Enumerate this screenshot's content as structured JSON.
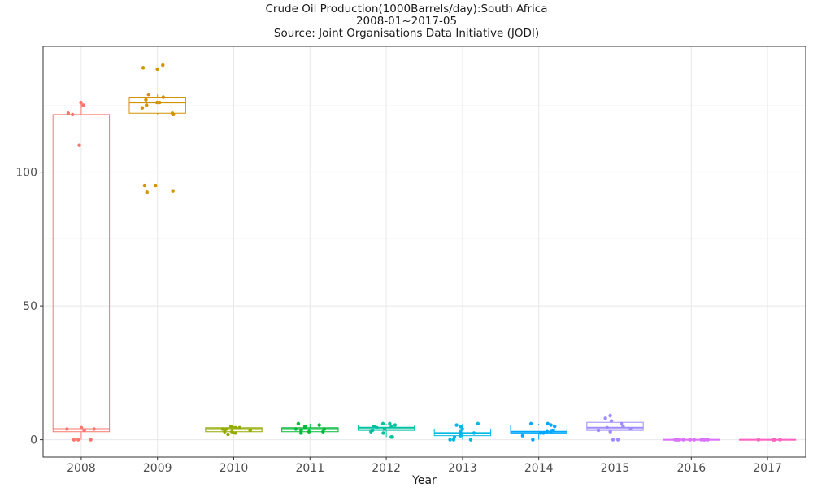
{
  "chart_data": {
    "type": "boxplot",
    "title": "Crude Oil Production(1000Barrels/day):South Africa",
    "subtitle": "2008-01~2017-05",
    "source": "Source: Joint Organisations Data Initiative (JODI)",
    "xlabel": "Year",
    "ylabel": "",
    "categories": [
      "2008",
      "2009",
      "2010",
      "2011",
      "2012",
      "2013",
      "2014",
      "2015",
      "2016",
      "2017"
    ],
    "ylim": [
      -6.5,
      147
    ],
    "yticks": [
      0,
      50,
      100
    ],
    "grid": true,
    "legend": "none",
    "colors": [
      "#F8766D",
      "#D39200",
      "#93AA00",
      "#00BA38",
      "#00C19F",
      "#00B9E3",
      "#00A9FF",
      "#9F8CFF",
      "#DB72FB",
      "#FF61C3"
    ],
    "boxes": [
      {
        "year": "2008",
        "q1": 3,
        "median": 4,
        "q3": 121.5,
        "whisker_low": 0,
        "whisker_high": 126,
        "points": [
          126,
          125,
          122,
          121.5,
          110,
          4.5,
          4,
          4,
          3.5,
          0,
          0,
          0
        ]
      },
      {
        "year": "2009",
        "q1": 122,
        "median": 126,
        "q3": 128,
        "whisker_low": 121.5,
        "whisker_high": 129,
        "points": [
          140,
          139,
          138.5,
          129,
          128,
          127,
          126,
          126,
          125,
          124,
          122,
          121.5,
          95,
          95,
          93,
          92.5
        ]
      },
      {
        "year": "2010",
        "q1": 3,
        "median": 4,
        "q3": 4.5,
        "whisker_low": 2,
        "whisker_high": 5,
        "points": [
          5,
          4.5,
          4.5,
          4,
          4,
          3.5,
          3,
          3,
          2.5,
          2
        ]
      },
      {
        "year": "2011",
        "q1": 3,
        "median": 4,
        "q3": 4.5,
        "whisker_low": 2.5,
        "whisker_high": 6,
        "points": [
          6,
          5.5,
          5,
          4.5,
          4,
          4,
          3.5,
          3,
          3,
          2.5
        ]
      },
      {
        "year": "2012",
        "q1": 3.5,
        "median": 4.5,
        "q3": 5.5,
        "whisker_low": 1,
        "whisker_high": 6,
        "points": [
          6,
          6,
          5.5,
          5,
          5,
          4.5,
          4,
          3.5,
          3,
          2.5,
          1,
          1
        ]
      },
      {
        "year": "2013",
        "q1": 1.5,
        "median": 2.5,
        "q3": 4,
        "whisker_low": 0,
        "whisker_high": 6,
        "points": [
          6,
          5.5,
          5,
          4,
          3,
          2.5,
          2,
          1.5,
          1,
          0,
          0,
          0
        ]
      },
      {
        "year": "2014",
        "q1": 2.5,
        "median": 3,
        "q3": 5.5,
        "whisker_low": 0,
        "whisker_high": 6,
        "points": [
          6,
          6,
          5.5,
          5,
          3.5,
          3,
          3,
          2.5,
          2.5,
          1.5,
          0
        ]
      },
      {
        "year": "2015",
        "q1": 3.5,
        "median": 4.5,
        "q3": 6.5,
        "whisker_low": 0,
        "whisker_high": 9,
        "points": [
          9,
          8,
          7,
          6,
          5,
          4.5,
          4,
          3.5,
          3,
          0,
          0
        ]
      },
      {
        "year": "2016",
        "q1": 0,
        "median": 0,
        "q3": 0,
        "whisker_low": 0,
        "whisker_high": 0,
        "points": [
          0,
          0,
          0,
          0,
          0,
          0,
          0,
          0,
          0,
          0,
          0,
          0
        ]
      },
      {
        "year": "2017",
        "q1": 0,
        "median": 0,
        "q3": 0,
        "whisker_low": 0,
        "whisker_high": 0,
        "points": [
          0,
          0,
          0,
          0,
          0
        ]
      }
    ]
  }
}
